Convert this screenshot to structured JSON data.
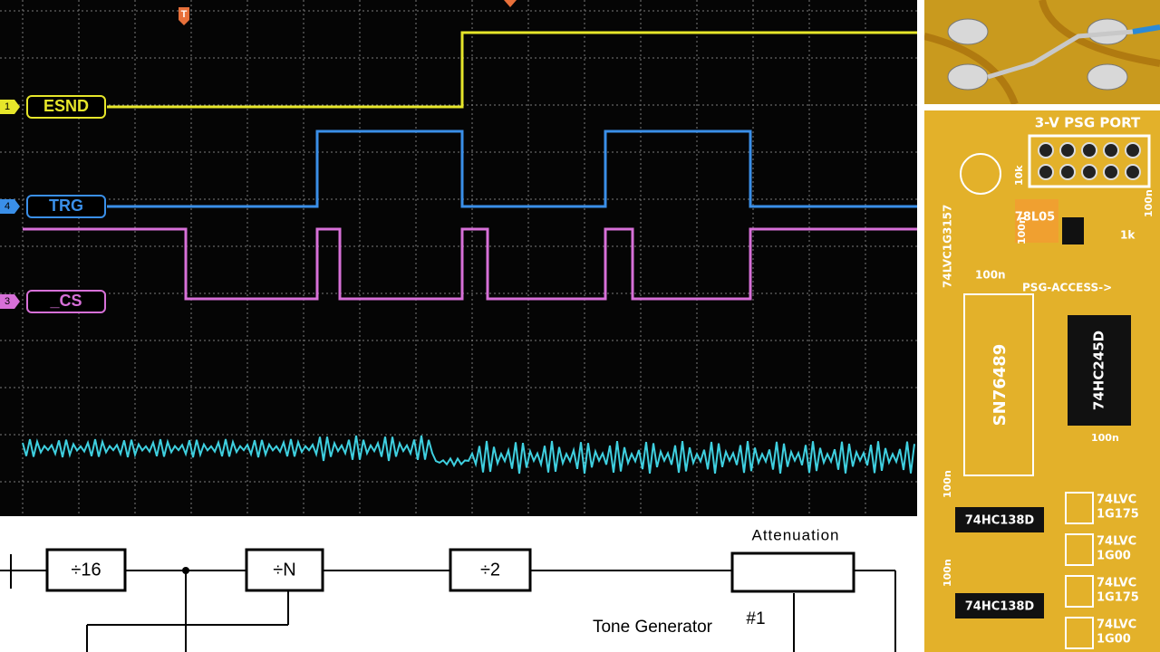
{
  "scope": {
    "trigger_marker": "T",
    "channels": [
      {
        "number": "1",
        "label": "ESND"
      },
      {
        "number": "4",
        "label": "TRG"
      },
      {
        "number": "3",
        "label": "_CS"
      }
    ]
  },
  "pcb": {
    "port_title": "3-V PSG PORT",
    "resistor_10k": "10k",
    "cap_top": "100n",
    "regulator": "78L05",
    "resistor_1k": "1k",
    "cap_right": "100n",
    "switch_chip": "74LVC1G3157",
    "cap_mid": "100n",
    "access_label": "PSG-ACCESS->",
    "sound_chip": "SN76489",
    "buffer_chip": "74HC245D",
    "cap_buffer": "100n",
    "cap_left1": "100n",
    "decoder1": "74HC138D",
    "decoder2": "74HC138D",
    "cap_left2": "100n",
    "logic": [
      {
        "part": "74LVC",
        "suffix": "1G175"
      },
      {
        "part": "74LVC",
        "suffix": "1G00"
      },
      {
        "part": "74LVC",
        "suffix": "1G175"
      },
      {
        "part": "74LVC",
        "suffix": "1G00"
      }
    ]
  },
  "diagram": {
    "blocks": [
      "÷16",
      "÷N",
      "÷2"
    ],
    "attenuation_label": "Attenuation",
    "generator_label": "Tone Generator",
    "generator_number": "#1"
  }
}
